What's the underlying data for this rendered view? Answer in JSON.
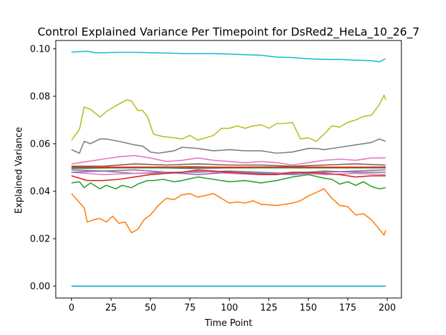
{
  "chart_data": {
    "type": "line",
    "title": "Control Explained Variance Per Timepoint for DsRed2_HeLa_10_26_7",
    "xlabel": "Time Point",
    "ylabel": "Explained Variance",
    "xlim": [
      -10,
      209
    ],
    "ylim": [
      -0.005,
      0.1035
    ],
    "xticks": [
      0,
      25,
      50,
      75,
      100,
      125,
      150,
      175,
      200
    ],
    "yticks": [
      0.0,
      0.02,
      0.04,
      0.06,
      0.08,
      0.1
    ],
    "ytick_labels": [
      "0.00",
      "0.02",
      "0.04",
      "0.06",
      "0.08",
      "0.10"
    ],
    "grid": false,
    "series": [
      {
        "color": "#17becf",
        "x": [
          0,
          5,
          10,
          15,
          20,
          30,
          40,
          50,
          60,
          70,
          80,
          90,
          100,
          110,
          120,
          130,
          140,
          150,
          160,
          170,
          180,
          190,
          195,
          199
        ],
        "values": [
          0.0986,
          0.0988,
          0.099,
          0.0983,
          0.0983,
          0.0985,
          0.0985,
          0.0983,
          0.0982,
          0.098,
          0.098,
          0.098,
          0.0978,
          0.0975,
          0.0973,
          0.0965,
          0.0963,
          0.0958,
          0.0955,
          0.0955,
          0.0952,
          0.095,
          0.0945,
          0.0958
        ]
      },
      {
        "color": "#bcbd22",
        "x": [
          0,
          5,
          8,
          12,
          18,
          22,
          28,
          35,
          38,
          42,
          45,
          48,
          52,
          58,
          65,
          70,
          75,
          80,
          90,
          95,
          100,
          105,
          110,
          115,
          120,
          125,
          130,
          135,
          140,
          145,
          150,
          155,
          160,
          165,
          170,
          175,
          180,
          185,
          190,
          195,
          198,
          199
        ],
        "values": [
          0.0615,
          0.066,
          0.0755,
          0.0745,
          0.0712,
          0.0735,
          0.076,
          0.0785,
          0.078,
          0.074,
          0.074,
          0.0715,
          0.064,
          0.063,
          0.0625,
          0.062,
          0.0635,
          0.0615,
          0.0635,
          0.0665,
          0.0665,
          0.0675,
          0.0665,
          0.0675,
          0.068,
          0.0665,
          0.0685,
          0.0685,
          0.069,
          0.062,
          0.0625,
          0.061,
          0.064,
          0.0675,
          0.067,
          0.069,
          0.07,
          0.0715,
          0.072,
          0.0765,
          0.0805,
          0.0785
        ]
      },
      {
        "color": "#7f7f7f",
        "x": [
          0,
          5,
          8,
          12,
          18,
          22,
          30,
          40,
          45,
          50,
          55,
          60,
          65,
          70,
          80,
          90,
          100,
          110,
          120,
          130,
          140,
          150,
          155,
          160,
          170,
          180,
          185,
          190,
          195,
          199
        ],
        "values": [
          0.0575,
          0.056,
          0.061,
          0.06,
          0.062,
          0.062,
          0.061,
          0.0595,
          0.059,
          0.0565,
          0.056,
          0.0565,
          0.057,
          0.0585,
          0.058,
          0.057,
          0.0575,
          0.057,
          0.057,
          0.056,
          0.0565,
          0.058,
          0.058,
          0.0575,
          0.0585,
          0.0595,
          0.06,
          0.0605,
          0.062,
          0.061
        ]
      },
      {
        "color": "#e377c2",
        "x": [
          0,
          10,
          20,
          30,
          40,
          50,
          60,
          70,
          80,
          90,
          100,
          110,
          120,
          130,
          140,
          150,
          160,
          170,
          180,
          190,
          199
        ],
        "values": [
          0.0515,
          0.0525,
          0.0535,
          0.0545,
          0.055,
          0.054,
          0.0525,
          0.053,
          0.054,
          0.053,
          0.0525,
          0.052,
          0.0525,
          0.052,
          0.051,
          0.052,
          0.053,
          0.0535,
          0.053,
          0.054,
          0.054
        ]
      },
      {
        "color": "#8c564b",
        "x": [
          0,
          20,
          40,
          60,
          80,
          100,
          120,
          140,
          160,
          180,
          199
        ],
        "values": [
          0.0505,
          0.0505,
          0.0515,
          0.051,
          0.0515,
          0.051,
          0.051,
          0.0505,
          0.051,
          0.0515,
          0.051
        ]
      },
      {
        "color": "#9467bd",
        "x": [
          0,
          25,
          50,
          75,
          100,
          125,
          150,
          175,
          199
        ],
        "values": [
          0.0495,
          0.0498,
          0.05,
          0.0495,
          0.0498,
          0.05,
          0.0498,
          0.05,
          0.0498
        ]
      },
      {
        "color": "#1f77b4",
        "x": [
          0,
          25,
          50,
          75,
          100,
          125,
          150,
          175,
          199
        ],
        "values": [
          0.05,
          0.05,
          0.05,
          0.05,
          0.05,
          0.05,
          0.05,
          0.05,
          0.05
        ]
      },
      {
        "color": "#ff7f0e",
        "x": [
          0,
          25,
          50,
          75,
          100,
          125,
          150,
          175,
          199
        ],
        "values": [
          0.0502,
          0.0502,
          0.0502,
          0.0502,
          0.0502,
          0.0502,
          0.0502,
          0.0502,
          0.0502
        ]
      },
      {
        "color": "#2ca02c",
        "x": [
          0,
          25,
          50,
          75,
          100,
          125,
          150,
          175,
          199
        ],
        "values": [
          0.0498,
          0.0498,
          0.0498,
          0.0498,
          0.0498,
          0.0498,
          0.0498,
          0.0498,
          0.0498
        ]
      },
      {
        "color": "#d62728",
        "x": [
          0,
          25,
          50,
          75,
          100,
          125,
          150,
          175,
          199
        ],
        "values": [
          0.0503,
          0.05,
          0.0501,
          0.0503,
          0.05,
          0.0502,
          0.0501,
          0.05,
          0.0502
        ]
      },
      {
        "color": "#7f7f7f",
        "x": [
          0,
          20,
          40,
          60,
          80,
          100,
          120,
          140,
          160,
          180,
          199
        ],
        "values": [
          0.049,
          0.0485,
          0.0475,
          0.048,
          0.048,
          0.0485,
          0.048,
          0.0475,
          0.0485,
          0.048,
          0.048
        ]
      },
      {
        "color": "#e377c2",
        "x": [
          0,
          20,
          40,
          60,
          80,
          100,
          120,
          140,
          160,
          180,
          199
        ],
        "values": [
          0.048,
          0.047,
          0.0475,
          0.0475,
          0.0485,
          0.0475,
          0.047,
          0.048,
          0.047,
          0.0475,
          0.047
        ]
      },
      {
        "color": "#9467bd",
        "x": [
          0,
          20,
          40,
          60,
          80,
          100,
          120,
          140,
          160,
          180,
          199
        ],
        "values": [
          0.048,
          0.0485,
          0.049,
          0.048,
          0.047,
          0.048,
          0.0475,
          0.047,
          0.048,
          0.0485,
          0.049
        ]
      },
      {
        "color": "#d62728",
        "x": [
          0,
          10,
          20,
          30,
          40,
          50,
          60,
          70,
          80,
          90,
          100,
          110,
          120,
          130,
          140,
          150,
          160,
          170,
          180,
          190,
          199
        ],
        "values": [
          0.0465,
          0.0445,
          0.0445,
          0.045,
          0.046,
          0.047,
          0.0475,
          0.048,
          0.049,
          0.0485,
          0.048,
          0.0475,
          0.047,
          0.047,
          0.048,
          0.048,
          0.0475,
          0.047,
          0.046,
          0.0465,
          0.0465
        ]
      },
      {
        "color": "#2ca02c",
        "x": [
          0,
          5,
          8,
          12,
          18,
          22,
          28,
          32,
          38,
          42,
          48,
          52,
          58,
          65,
          70,
          80,
          90,
          100,
          110,
          120,
          130,
          140,
          150,
          160,
          165,
          170,
          175,
          180,
          185,
          190,
          195,
          199
        ],
        "values": [
          0.0435,
          0.044,
          0.0415,
          0.0435,
          0.041,
          0.0425,
          0.041,
          0.0425,
          0.0415,
          0.043,
          0.0445,
          0.0445,
          0.045,
          0.044,
          0.0445,
          0.046,
          0.045,
          0.044,
          0.0445,
          0.0435,
          0.0445,
          0.046,
          0.047,
          0.0455,
          0.045,
          0.043,
          0.044,
          0.0425,
          0.044,
          0.042,
          0.041,
          0.0415
        ]
      },
      {
        "color": "#ff7f0e",
        "x": [
          0,
          4,
          8,
          10,
          14,
          18,
          22,
          26,
          30,
          34,
          38,
          42,
          46,
          50,
          55,
          60,
          65,
          70,
          75,
          80,
          90,
          95,
          100,
          105,
          110,
          115,
          120,
          130,
          140,
          145,
          150,
          155,
          160,
          165,
          170,
          175,
          180,
          185,
          190,
          195,
          198,
          199
        ],
        "values": [
          0.039,
          0.036,
          0.033,
          0.027,
          0.028,
          0.0285,
          0.027,
          0.0295,
          0.0265,
          0.027,
          0.0225,
          0.024,
          0.028,
          0.03,
          0.034,
          0.037,
          0.0365,
          0.0385,
          0.039,
          0.0375,
          0.039,
          0.037,
          0.035,
          0.0355,
          0.035,
          0.036,
          0.0345,
          0.034,
          0.035,
          0.036,
          0.038,
          0.0395,
          0.041,
          0.037,
          0.034,
          0.0335,
          0.03,
          0.0305,
          0.028,
          0.024,
          0.0215,
          0.0235
        ]
      },
      {
        "color": "#1f77b4",
        "x": [
          0,
          199
        ],
        "values": [
          0.0,
          0.0
        ]
      },
      {
        "color": "#17becf",
        "x": [
          0,
          199
        ],
        "values": [
          0.0,
          0.0
        ]
      }
    ]
  }
}
